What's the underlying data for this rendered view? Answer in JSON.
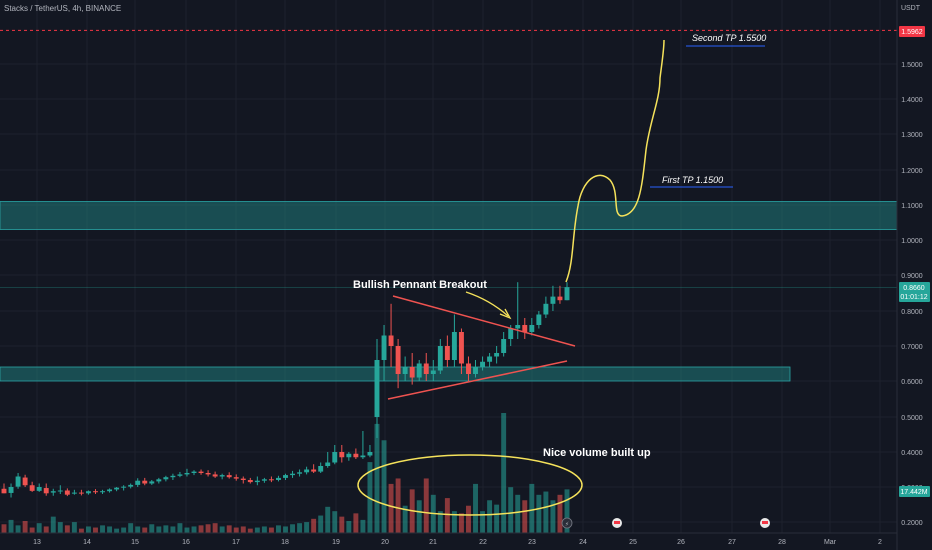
{
  "header": {
    "symbol_line": "Stacks / TetherUS, 4h, BINANCE",
    "currency": "USDT"
  },
  "price_labels": {
    "target": "1.5962",
    "current": "0.8660",
    "countdown": "01:01:12",
    "volume": "17.442M"
  },
  "annotations": {
    "second_tp": "Second TP 1.5500",
    "first_tp": "First TP 1.1500",
    "pennant": "Bullish Pennant Breakout",
    "volume_note": "Nice volume built up"
  },
  "colors": {
    "background": "#131722",
    "up": "#26a69a",
    "down": "#ef5350",
    "zone": "#1f7a7a",
    "target_line": "#f23645",
    "annotation_yellow": "#f5e25b",
    "tp_line": "#2962ff",
    "pennant_line": "#ef5350"
  },
  "chart_data": {
    "type": "candlestick",
    "y_ticks": [
      "1.5000",
      "1.4000",
      "1.3000",
      "1.2000",
      "1.1000",
      "1.0000",
      "0.9000",
      "0.8000",
      "0.7000",
      "0.6000",
      "0.5000",
      "0.4000",
      "0.3000",
      "0.2000"
    ],
    "x_ticks": [
      "13",
      "14",
      "15",
      "16",
      "17",
      "18",
      "19",
      "20",
      "21",
      "22",
      "23",
      "24",
      "25",
      "26",
      "27",
      "28",
      "Mar",
      "2"
    ],
    "zones": [
      {
        "from": 1.03,
        "to": 1.11
      },
      {
        "from": 0.6,
        "to": 0.64
      }
    ],
    "target_price": 1.5962,
    "last_price": 0.866,
    "candles": [
      {
        "o": 0.295,
        "h": 0.31,
        "c": 0.282,
        "l": 0.282
      },
      {
        "o": 0.283,
        "h": 0.31,
        "c": 0.3,
        "l": 0.27
      },
      {
        "o": 0.301,
        "h": 0.34,
        "c": 0.33,
        "l": 0.295
      },
      {
        "o": 0.327,
        "h": 0.335,
        "c": 0.305,
        "l": 0.3
      },
      {
        "o": 0.305,
        "h": 0.315,
        "c": 0.289,
        "l": 0.286
      },
      {
        "o": 0.289,
        "h": 0.31,
        "c": 0.3,
        "l": 0.286
      },
      {
        "o": 0.297,
        "h": 0.31,
        "c": 0.282,
        "l": 0.275
      },
      {
        "o": 0.284,
        "h": 0.295,
        "c": 0.288,
        "l": 0.275
      },
      {
        "o": 0.288,
        "h": 0.305,
        "c": 0.29,
        "l": 0.28
      },
      {
        "o": 0.29,
        "h": 0.296,
        "c": 0.278,
        "l": 0.274
      },
      {
        "o": 0.281,
        "h": 0.292,
        "c": 0.284,
        "l": 0.278
      },
      {
        "o": 0.284,
        "h": 0.292,
        "c": 0.282,
        "l": 0.276
      },
      {
        "o": 0.282,
        "h": 0.29,
        "c": 0.288,
        "l": 0.278
      },
      {
        "o": 0.288,
        "h": 0.294,
        "c": 0.285,
        "l": 0.28
      },
      {
        "o": 0.285,
        "h": 0.292,
        "c": 0.288,
        "l": 0.28
      },
      {
        "o": 0.288,
        "h": 0.296,
        "c": 0.293,
        "l": 0.284
      },
      {
        "o": 0.293,
        "h": 0.3,
        "c": 0.298,
        "l": 0.288
      },
      {
        "o": 0.298,
        "h": 0.305,
        "c": 0.301,
        "l": 0.29
      },
      {
        "o": 0.301,
        "h": 0.31,
        "c": 0.306,
        "l": 0.296
      },
      {
        "o": 0.306,
        "h": 0.325,
        "c": 0.318,
        "l": 0.3
      },
      {
        "o": 0.318,
        "h": 0.326,
        "c": 0.31,
        "l": 0.305
      },
      {
        "o": 0.31,
        "h": 0.32,
        "c": 0.316,
        "l": 0.306
      },
      {
        "o": 0.316,
        "h": 0.326,
        "c": 0.322,
        "l": 0.31
      },
      {
        "o": 0.322,
        "h": 0.332,
        "c": 0.328,
        "l": 0.316
      },
      {
        "o": 0.328,
        "h": 0.338,
        "c": 0.332,
        "l": 0.32
      },
      {
        "o": 0.332,
        "h": 0.343,
        "c": 0.336,
        "l": 0.328
      },
      {
        "o": 0.336,
        "h": 0.352,
        "c": 0.34,
        "l": 0.33
      },
      {
        "o": 0.34,
        "h": 0.348,
        "c": 0.344,
        "l": 0.334
      },
      {
        "o": 0.344,
        "h": 0.35,
        "c": 0.34,
        "l": 0.335
      },
      {
        "o": 0.34,
        "h": 0.348,
        "c": 0.336,
        "l": 0.33
      },
      {
        "o": 0.336,
        "h": 0.344,
        "c": 0.33,
        "l": 0.326
      },
      {
        "o": 0.33,
        "h": 0.338,
        "c": 0.334,
        "l": 0.322
      },
      {
        "o": 0.334,
        "h": 0.342,
        "c": 0.328,
        "l": 0.324
      },
      {
        "o": 0.328,
        "h": 0.336,
        "c": 0.324,
        "l": 0.318
      },
      {
        "o": 0.324,
        "h": 0.33,
        "c": 0.32,
        "l": 0.31
      },
      {
        "o": 0.32,
        "h": 0.326,
        "c": 0.314,
        "l": 0.31
      },
      {
        "o": 0.314,
        "h": 0.33,
        "c": 0.318,
        "l": 0.305
      },
      {
        "o": 0.318,
        "h": 0.326,
        "c": 0.322,
        "l": 0.312
      },
      {
        "o": 0.322,
        "h": 0.33,
        "c": 0.32,
        "l": 0.314
      },
      {
        "o": 0.32,
        "h": 0.332,
        "c": 0.326,
        "l": 0.316
      },
      {
        "o": 0.326,
        "h": 0.338,
        "c": 0.334,
        "l": 0.32
      },
      {
        "o": 0.334,
        "h": 0.346,
        "c": 0.338,
        "l": 0.326
      },
      {
        "o": 0.338,
        "h": 0.35,
        "c": 0.342,
        "l": 0.33
      },
      {
        "o": 0.342,
        "h": 0.358,
        "c": 0.35,
        "l": 0.336
      },
      {
        "o": 0.35,
        "h": 0.365,
        "c": 0.344,
        "l": 0.34
      },
      {
        "o": 0.344,
        "h": 0.37,
        "c": 0.36,
        "l": 0.34
      },
      {
        "o": 0.36,
        "h": 0.4,
        "c": 0.37,
        "l": 0.355
      },
      {
        "o": 0.37,
        "h": 0.42,
        "c": 0.4,
        "l": 0.365
      },
      {
        "o": 0.4,
        "h": 0.42,
        "c": 0.385,
        "l": 0.37
      },
      {
        "o": 0.385,
        "h": 0.4,
        "c": 0.395,
        "l": 0.375
      },
      {
        "o": 0.395,
        "h": 0.41,
        "c": 0.385,
        "l": 0.38
      },
      {
        "o": 0.385,
        "h": 0.46,
        "c": 0.39,
        "l": 0.38
      },
      {
        "o": 0.39,
        "h": 0.42,
        "c": 0.4,
        "l": 0.385
      },
      {
        "o": 0.5,
        "h": 0.72,
        "c": 0.66,
        "l": 0.44
      },
      {
        "o": 0.66,
        "h": 0.76,
        "c": 0.73,
        "l": 0.6
      },
      {
        "o": 0.73,
        "h": 0.82,
        "c": 0.7,
        "l": 0.64
      },
      {
        "o": 0.7,
        "h": 0.72,
        "c": 0.62,
        "l": 0.58
      },
      {
        "o": 0.62,
        "h": 0.67,
        "c": 0.64,
        "l": 0.6
      },
      {
        "o": 0.64,
        "h": 0.68,
        "c": 0.61,
        "l": 0.59
      },
      {
        "o": 0.61,
        "h": 0.66,
        "c": 0.65,
        "l": 0.6
      },
      {
        "o": 0.65,
        "h": 0.68,
        "c": 0.62,
        "l": 0.6
      },
      {
        "o": 0.62,
        "h": 0.66,
        "c": 0.63,
        "l": 0.6
      },
      {
        "o": 0.63,
        "h": 0.72,
        "c": 0.7,
        "l": 0.62
      },
      {
        "o": 0.7,
        "h": 0.73,
        "c": 0.66,
        "l": 0.64
      },
      {
        "o": 0.66,
        "h": 0.79,
        "c": 0.74,
        "l": 0.64
      },
      {
        "o": 0.74,
        "h": 0.75,
        "c": 0.65,
        "l": 0.62
      },
      {
        "o": 0.65,
        "h": 0.67,
        "c": 0.62,
        "l": 0.6
      },
      {
        "o": 0.62,
        "h": 0.66,
        "c": 0.64,
        "l": 0.61
      },
      {
        "o": 0.64,
        "h": 0.67,
        "c": 0.655,
        "l": 0.63
      },
      {
        "o": 0.655,
        "h": 0.68,
        "c": 0.67,
        "l": 0.64
      },
      {
        "o": 0.67,
        "h": 0.7,
        "c": 0.68,
        "l": 0.65
      },
      {
        "o": 0.68,
        "h": 0.74,
        "c": 0.72,
        "l": 0.67
      },
      {
        "o": 0.72,
        "h": 0.76,
        "c": 0.75,
        "l": 0.7
      },
      {
        "o": 0.75,
        "h": 0.88,
        "c": 0.76,
        "l": 0.72
      },
      {
        "o": 0.76,
        "h": 0.78,
        "c": 0.74,
        "l": 0.72
      },
      {
        "o": 0.74,
        "h": 0.78,
        "c": 0.76,
        "l": 0.73
      },
      {
        "o": 0.76,
        "h": 0.8,
        "c": 0.79,
        "l": 0.75
      },
      {
        "o": 0.79,
        "h": 0.84,
        "c": 0.82,
        "l": 0.78
      },
      {
        "o": 0.82,
        "h": 0.87,
        "c": 0.84,
        "l": 0.8
      },
      {
        "o": 0.84,
        "h": 0.87,
        "c": 0.83,
        "l": 0.82
      },
      {
        "o": 0.83,
        "h": 0.88,
        "c": 0.866,
        "l": 0.83
      }
    ],
    "volumes": [
      0.8,
      1.2,
      0.7,
      1.1,
      0.5,
      0.9,
      0.6,
      1.5,
      1.0,
      0.7,
      1.0,
      0.4,
      0.6,
      0.5,
      0.7,
      0.6,
      0.4,
      0.5,
      0.9,
      0.6,
      0.5,
      0.8,
      0.6,
      0.7,
      0.6,
      0.9,
      0.5,
      0.6,
      0.7,
      0.8,
      0.9,
      0.6,
      0.7,
      0.5,
      0.6,
      0.4,
      0.5,
      0.6,
      0.5,
      0.7,
      0.6,
      0.8,
      0.9,
      1.0,
      1.3,
      1.6,
      2.4,
      2.0,
      1.5,
      1.1,
      1.8,
      1.2,
      6.5,
      10.0,
      8.5,
      4.5,
      5.0,
      2.5,
      4.0,
      3.0,
      5.0,
      3.5,
      2.0,
      3.2,
      2.0,
      1.8,
      2.5,
      4.5,
      2.0,
      3.0,
      2.6,
      11.0,
      4.2,
      3.5,
      3.0,
      4.5,
      3.5,
      3.8,
      3.0,
      3.5,
      4.0
    ]
  }
}
